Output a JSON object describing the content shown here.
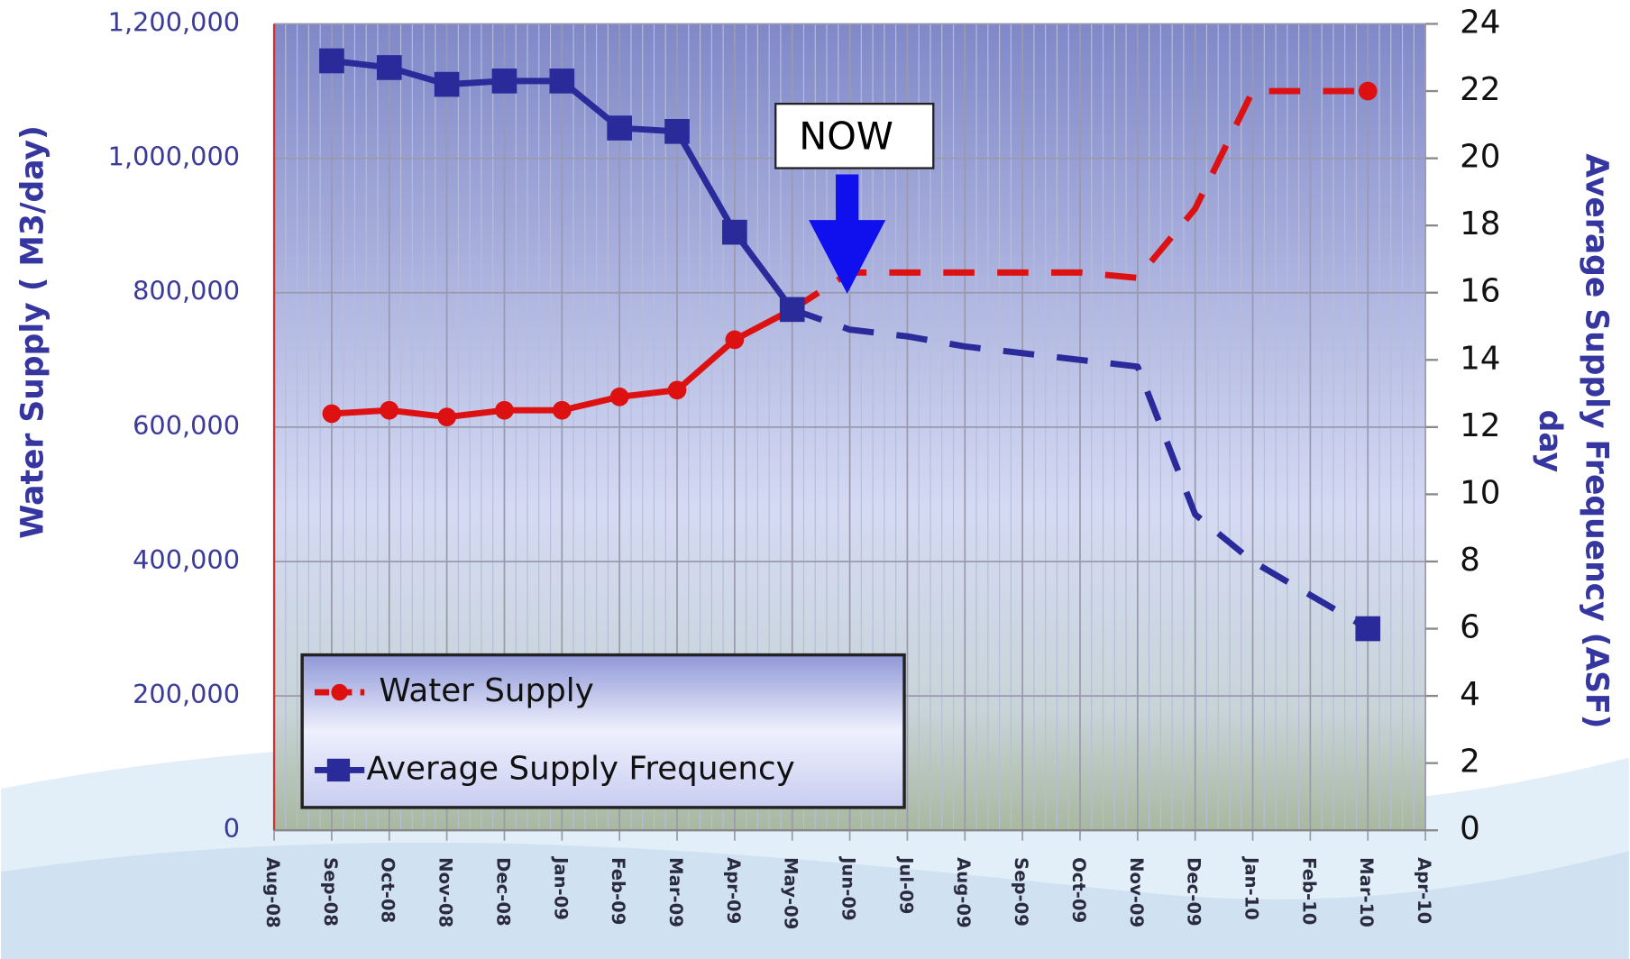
{
  "chart_data": {
    "type": "line",
    "categories": [
      "Aug-08",
      "Sep-08",
      "Oct-08",
      "Nov-08",
      "Dec-08",
      "Jan-09",
      "Feb-09",
      "Mar-09",
      "Apr-09",
      "May-09",
      "Jun-09",
      "Jul-09",
      "Aug-09",
      "Sep-09",
      "Oct-09",
      "Nov-09",
      "Dec-09",
      "Jan-10",
      "Feb-10",
      "Mar-10",
      "Apr-10"
    ],
    "series": [
      {
        "name": "Water Supply",
        "color": "#dd1111",
        "marker": "circle",
        "dash_from": 9,
        "values": [
          null,
          620000,
          625000,
          615000,
          625000,
          625000,
          645000,
          655000,
          730000,
          775000,
          830000,
          830000,
          830000,
          830000,
          830000,
          822000,
          925000,
          1100000,
          1100000,
          1100000,
          null
        ]
      },
      {
        "name": "Average Supply Frequency",
        "color": "#2a2a9a",
        "marker": "square",
        "axis": "y2",
        "dash_from": 9,
        "values": [
          null,
          22.9,
          22.7,
          22.2,
          22.3,
          22.3,
          20.9,
          20.8,
          17.8,
          15.5,
          14.9,
          14.7,
          14.4,
          14.2,
          14.0,
          13.8,
          9.4,
          8.0,
          7.0,
          6.0,
          null
        ]
      }
    ],
    "ylabel": "Water  Supply ( M3/day)",
    "y2label": [
      "Average Supply Frequency (ASF)",
      "day"
    ],
    "ylim": [
      0,
      1200000
    ],
    "yticks": [
      0,
      {
        "value": 200000,
        "label": "200,000"
      },
      {
        "value": 400000,
        "label": "400,000"
      },
      {
        "value": 600000,
        "label": "600,000"
      },
      {
        "value": 800000,
        "label": "800,000"
      },
      {
        "value": 1000000,
        "label": "1,000,000"
      },
      {
        "value": 1200000,
        "label": "1,200,000"
      }
    ],
    "y2lim": [
      0,
      24
    ],
    "y2ticks": [
      0,
      2,
      4,
      6,
      8,
      10,
      12,
      14,
      16,
      18,
      20,
      22,
      24
    ],
    "annotation": "NOW",
    "grid": true,
    "legend": "lower left"
  }
}
